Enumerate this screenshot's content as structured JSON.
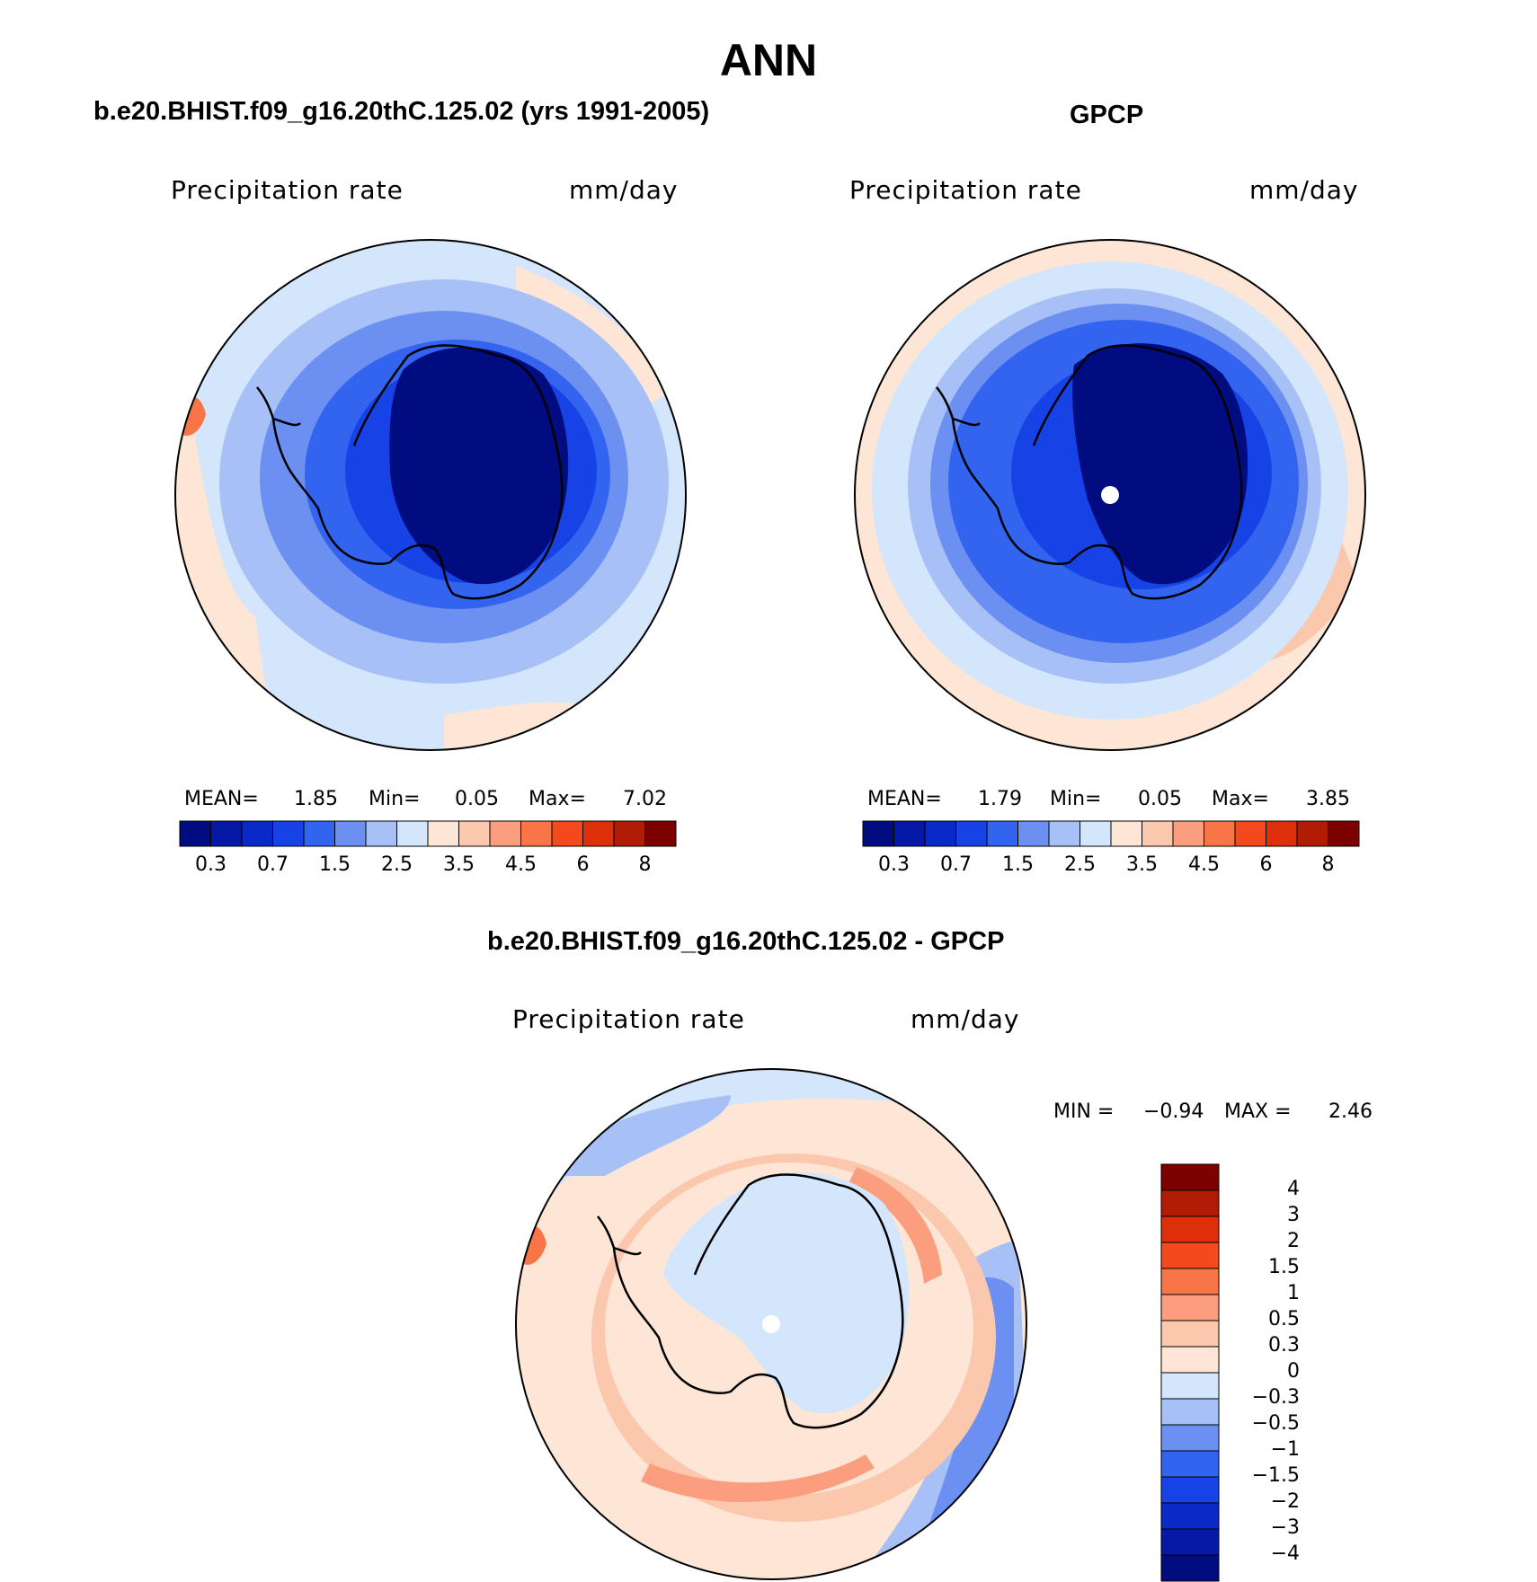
{
  "title": "ANN",
  "panels": [
    {
      "subtitle": "b.e20.BHIST.f09_g16.20thC.125.02 (yrs 1991-2005)",
      "variable": "Precipitation  rate",
      "units": "mm/day",
      "stats": {
        "mean_label": "MEAN=",
        "mean": "1.85",
        "min_label": "Min=",
        "min": "0.05",
        "max_label": "Max=",
        "max": "7.02"
      }
    },
    {
      "subtitle": "GPCP",
      "variable": "Precipitation  rate",
      "units": "mm/day",
      "stats": {
        "mean_label": "MEAN=",
        "mean": "1.79",
        "min_label": "Min=",
        "min": "0.05",
        "max_label": "Max=",
        "max": "3.85"
      }
    },
    {
      "subtitle": "b.e20.BHIST.f09_g16.20thC.125.02 - GPCP",
      "variable": "Precipitation  rate",
      "units": "mm/day",
      "stats": {
        "min_label": "MIN =",
        "min": "−0.94",
        "max_label": "MAX =",
        "max": "2.46"
      }
    }
  ],
  "colorbar_main": {
    "colors": [
      "#000c80",
      "#0519a6",
      "#0a2ac8",
      "#1642e6",
      "#3264f0",
      "#6b90f2",
      "#a7c1f6",
      "#d4e6fb",
      "#fde6d5",
      "#fcc8ad",
      "#fa9e7e",
      "#f87548",
      "#f4491c",
      "#dd300a",
      "#b01c05",
      "#7d0000"
    ],
    "ticks": [
      "0.3",
      "0.7",
      "1.5",
      "2.5",
      "3.5",
      "4.5",
      "6",
      "8"
    ]
  },
  "colorbar_diff": {
    "colors": [
      "#000c80",
      "#0519a6",
      "#0a2ac8",
      "#1642e6",
      "#3264f0",
      "#6b90f2",
      "#a7c1f6",
      "#d4e6fb",
      "#fde6d5",
      "#fcc8ad",
      "#fa9e7e",
      "#f87548",
      "#f4491c",
      "#dd300a",
      "#b01c05",
      "#7d0000"
    ],
    "ticks": [
      "4",
      "3",
      "2",
      "1.5",
      "1",
      "0.5",
      "0.3",
      "0",
      "−0.3",
      "−0.5",
      "−1",
      "−1.5",
      "−2",
      "−3",
      "−4"
    ]
  },
  "map_colors": {
    "ocean_pale_blue": "#d4e6fb",
    "light_blue": "#a7c1f6",
    "mid_blue": "#6b90f2",
    "blue": "#3264f0",
    "strong_blue": "#1642e6",
    "deep_blue": "#000c80",
    "pale_orange": "#fde6d5",
    "peach": "#fcc8ad",
    "orange": "#fa9e7e",
    "red_orange": "#f87548"
  }
}
